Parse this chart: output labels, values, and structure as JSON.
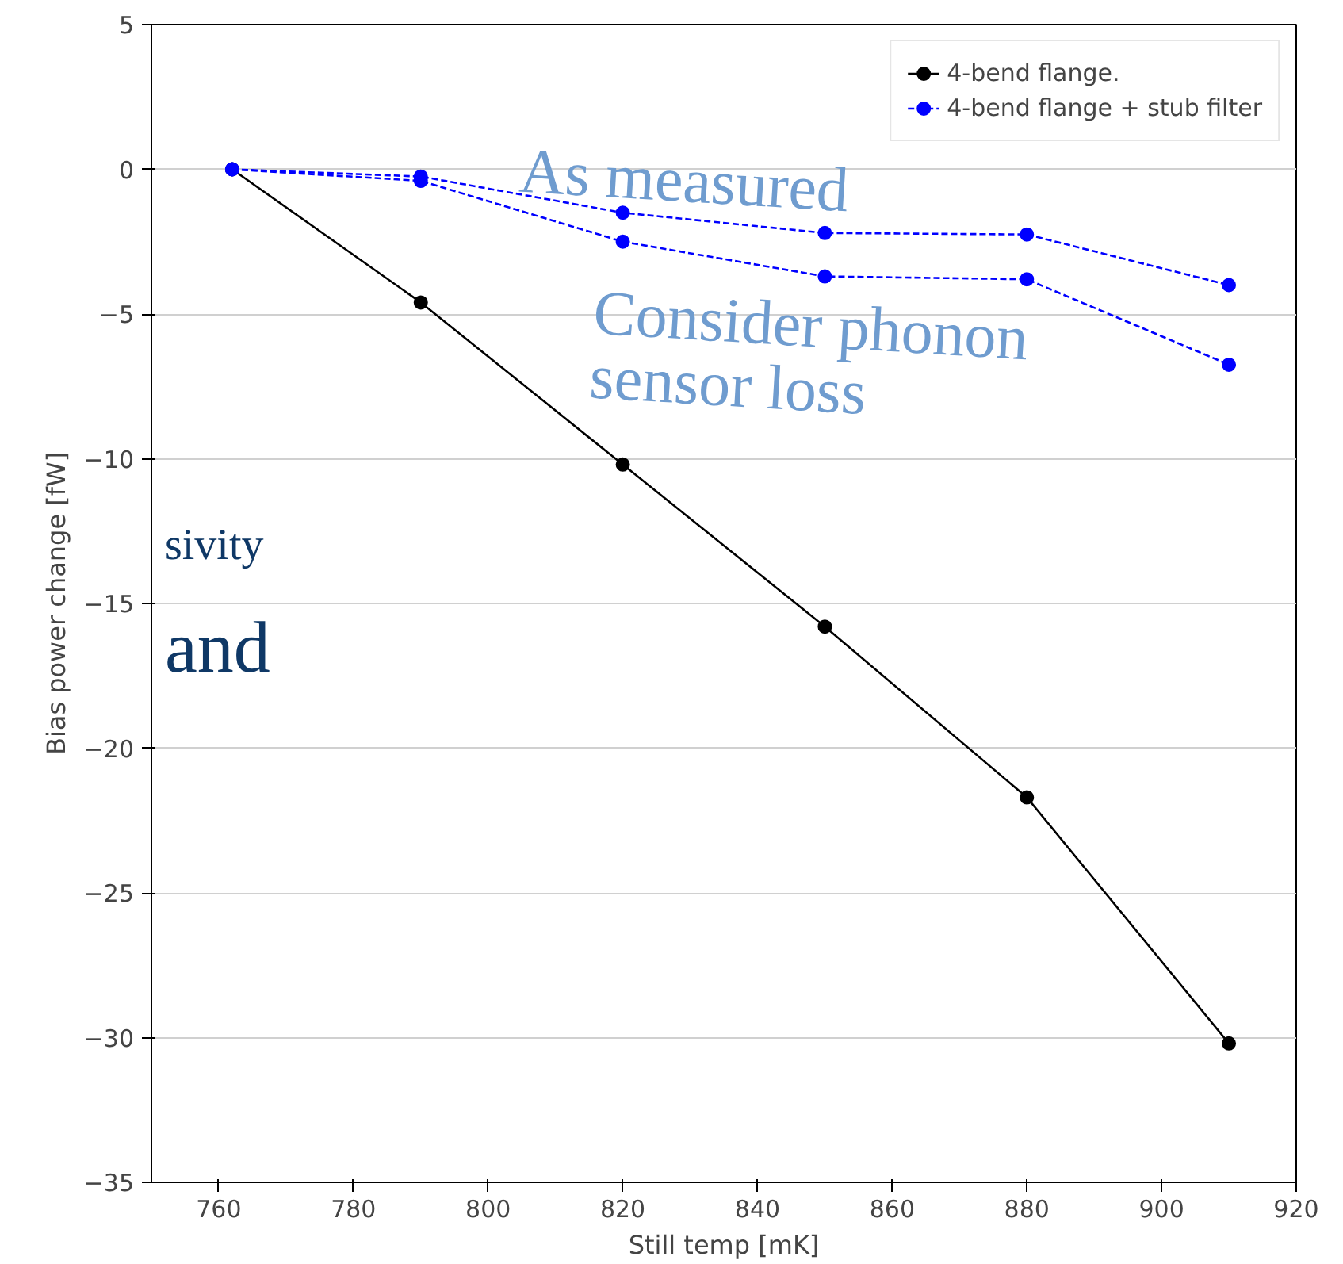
{
  "chart_data": {
    "type": "line",
    "xlabel": "Still temp [mK]",
    "ylabel": "Bias power change [fW]",
    "xlim": [
      750,
      920
    ],
    "xticks": [
      760,
      780,
      800,
      820,
      840,
      860,
      880,
      900,
      920
    ],
    "ylim": [
      -35,
      5
    ],
    "yticks": [
      {
        "value": -35,
        "label": "−35"
      },
      {
        "value": -30,
        "label": "−30"
      },
      {
        "value": -25,
        "label": "−25"
      },
      {
        "value": -20,
        "label": "−20"
      },
      {
        "value": -15,
        "label": "−15"
      },
      {
        "value": -10,
        "label": "−10"
      },
      {
        "value": -5,
        "label": "−5"
      },
      0,
      5
    ],
    "grid": "y",
    "legend": "top right",
    "marker": "circle",
    "series": [
      {
        "name": "4-bend flange.",
        "color": "#000000",
        "line_style": "solid",
        "x": [
          762,
          790,
          820,
          850,
          880,
          910
        ],
        "values": [
          0,
          -4.6,
          -10.2,
          -15.8,
          -21.7,
          -30.2
        ]
      },
      {
        "name": "4-bend flange + stub filter",
        "color": "#0000ff",
        "line_style": "dashed",
        "x": [
          762,
          790,
          820,
          850,
          880,
          910
        ],
        "values": [
          0,
          -0.25,
          -1.5,
          -2.2,
          -2.25,
          -4.0
        ]
      },
      {
        "color": "#0000ff",
        "line_style": "dashed",
        "x": [
          762,
          790,
          820,
          850,
          880,
          910
        ],
        "values": [
          0,
          -0.4,
          -2.5,
          -3.7,
          -3.8,
          -6.75
        ]
      }
    ],
    "annotations": [
      "As measured",
      "Consider phonon\nsensor loss",
      "sivity",
      "and"
    ]
  }
}
